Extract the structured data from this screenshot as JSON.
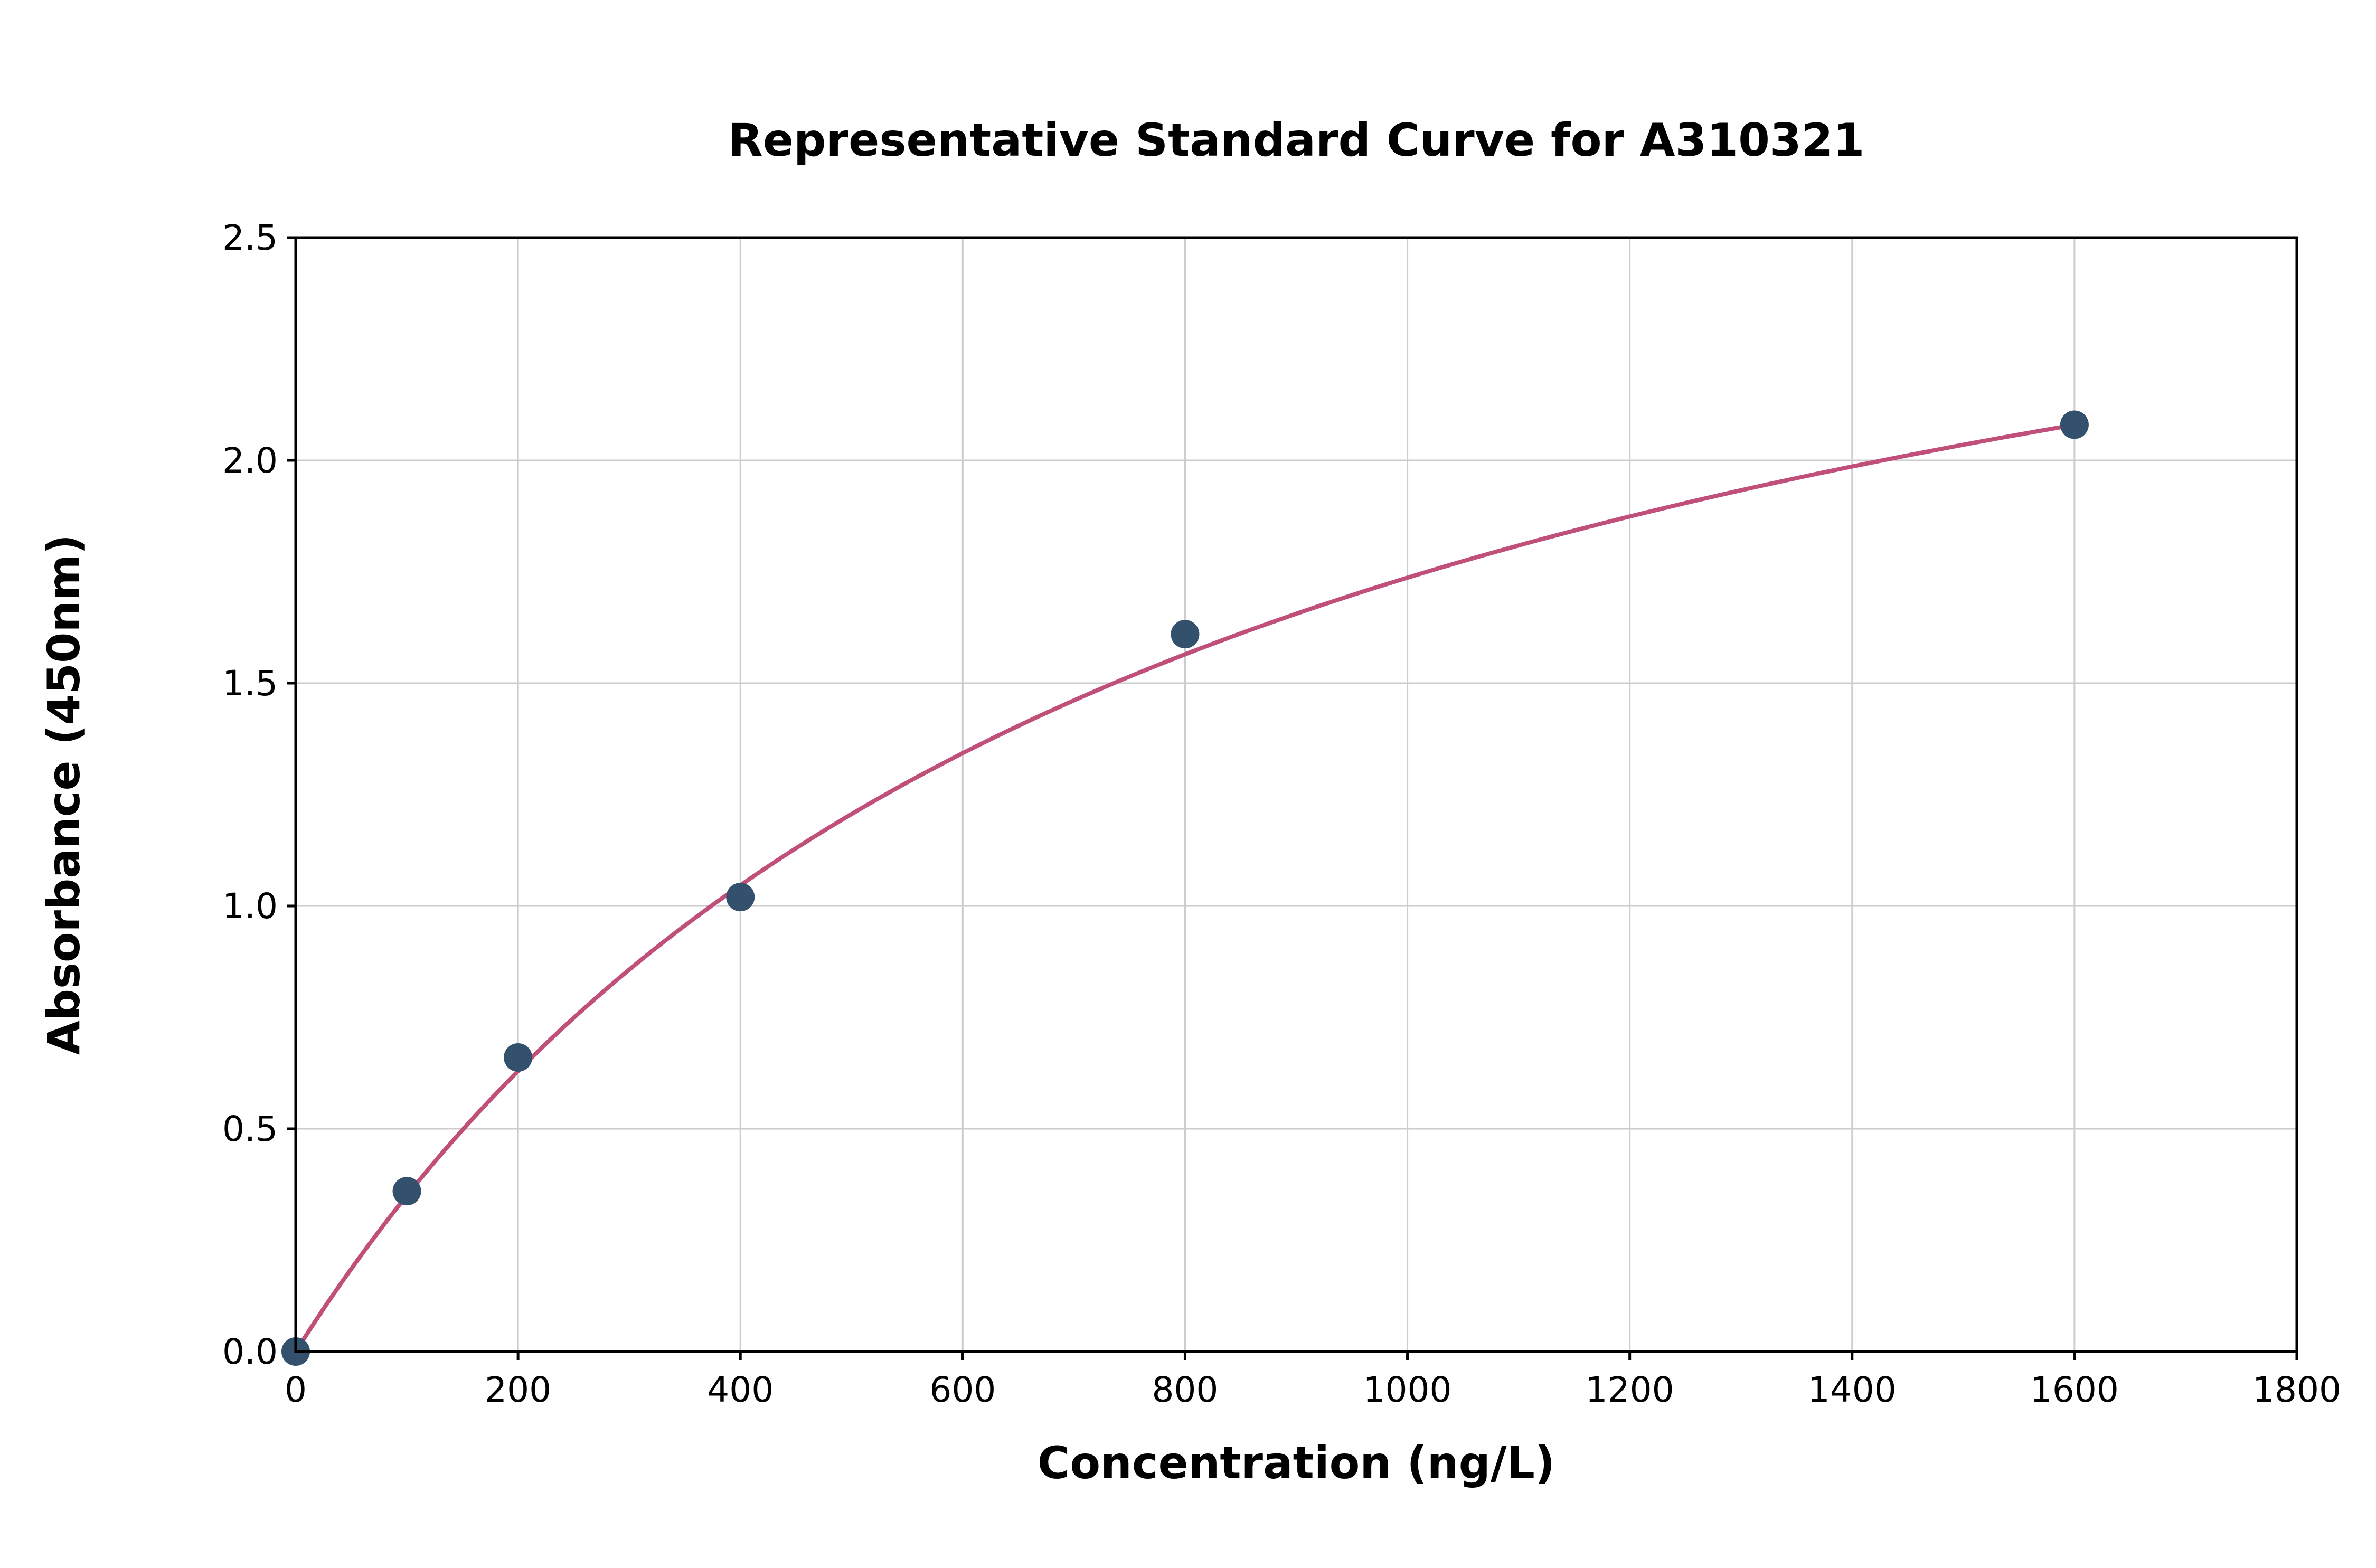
{
  "chart_data": {
    "type": "scatter",
    "title": "Representative Standard Curve for A310321",
    "xlabel": "Concentration (ng/L)",
    "ylabel": "Absorbance (450nm)",
    "xlim": [
      0,
      1800
    ],
    "ylim": [
      0,
      2.5
    ],
    "xticks": [
      0,
      200,
      400,
      600,
      800,
      1000,
      1200,
      1400,
      1600,
      1800
    ],
    "xticklabels": [
      "0",
      "200",
      "400",
      "600",
      "800",
      "1000",
      "1200",
      "1400",
      "1600",
      "1800"
    ],
    "yticks": [
      0,
      0.5,
      1.0,
      1.5,
      2.0,
      2.5
    ],
    "yticklabels": [
      "0.0",
      "0.5",
      "1.0",
      "1.5",
      "2.0",
      "2.5"
    ],
    "grid": true,
    "legend": "none",
    "points": {
      "x": [
        0,
        100,
        200,
        400,
        800,
        1600
      ],
      "y": [
        0.0,
        0.36,
        0.66,
        1.02,
        1.61,
        2.08
      ]
    },
    "fit_curve": {
      "type": "saturation",
      "a": 3.1,
      "b": 785,
      "x_range": [
        0,
        1600
      ]
    },
    "colors": {
      "curve": "#c0507a",
      "marker": "#33516d",
      "grid": "#cccccc",
      "axis": "#000000"
    }
  }
}
